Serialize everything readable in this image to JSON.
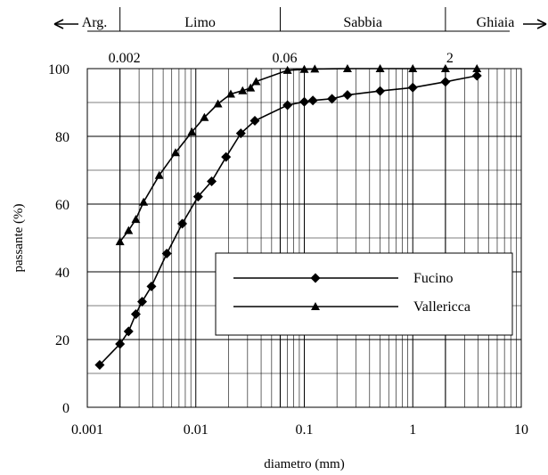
{
  "chart_data": {
    "type": "line",
    "xlabel": "diametro (mm)",
    "ylabel": "passante (%)",
    "xscale": "log",
    "xlim": [
      0.001,
      10
    ],
    "ylim": [
      0,
      100
    ],
    "grid": true,
    "legend_position": "lower-right",
    "x_tick_labels": [
      "0.001",
      "0.01",
      "0.1",
      "1",
      "10"
    ],
    "x_ticks": [
      0.001,
      0.01,
      0.1,
      1,
      10
    ],
    "y_ticks": [
      0,
      20,
      40,
      60,
      80,
      100
    ],
    "y_tick_labels": [
      "0",
      "20",
      "40",
      "60",
      "80",
      "100"
    ],
    "classification": {
      "bands": [
        {
          "label": "Arg.",
          "from": 0.001,
          "to": 0.002
        },
        {
          "label": "Limo",
          "from": 0.002,
          "to": 0.06
        },
        {
          "label": "Sabbia",
          "from": 0.06,
          "to": 2
        },
        {
          "label": "Ghiaia",
          "from": 2,
          "to": 10
        }
      ],
      "boundaries": [
        {
          "label": "0.002",
          "x": 0.002
        },
        {
          "label": "0.06",
          "x": 0.06
        },
        {
          "label": "2",
          "x": 2
        }
      ]
    },
    "series": [
      {
        "name": "Fucino",
        "marker": "diamond",
        "color": "#000000",
        "points": [
          [
            0.0013,
            12.5
          ],
          [
            0.002,
            18.7
          ],
          [
            0.0024,
            22.4
          ],
          [
            0.0028,
            27.5
          ],
          [
            0.0032,
            31.2
          ],
          [
            0.0039,
            35.7
          ],
          [
            0.0054,
            45.4
          ],
          [
            0.0075,
            54.2
          ],
          [
            0.0105,
            62.2
          ],
          [
            0.014,
            66.7
          ],
          [
            0.019,
            73.9
          ],
          [
            0.026,
            80.9
          ],
          [
            0.035,
            84.6
          ],
          [
            0.07,
            89.2
          ],
          [
            0.1,
            90.2
          ],
          [
            0.12,
            90.6
          ],
          [
            0.18,
            91.1
          ],
          [
            0.25,
            92.2
          ],
          [
            0.5,
            93.4
          ],
          [
            1.0,
            94.4
          ],
          [
            2.0,
            96.1
          ],
          [
            3.9,
            97.9
          ]
        ]
      },
      {
        "name": "Vallericca",
        "marker": "triangle",
        "color": "#000000",
        "points": [
          [
            0.002,
            48.9
          ],
          [
            0.0024,
            52.2
          ],
          [
            0.0028,
            55.5
          ],
          [
            0.0033,
            60.6
          ],
          [
            0.0046,
            68.5
          ],
          [
            0.0065,
            75.2
          ],
          [
            0.0092,
            81.3
          ],
          [
            0.012,
            85.6
          ],
          [
            0.016,
            89.6
          ],
          [
            0.021,
            92.5
          ],
          [
            0.027,
            93.5
          ],
          [
            0.032,
            94.3
          ],
          [
            0.036,
            96.2
          ],
          [
            0.07,
            99.5
          ],
          [
            0.1,
            99.8
          ],
          [
            0.125,
            99.9
          ],
          [
            0.25,
            100
          ],
          [
            0.5,
            100
          ],
          [
            1.0,
            100
          ],
          [
            2.0,
            100
          ],
          [
            3.9,
            100
          ]
        ]
      }
    ]
  }
}
